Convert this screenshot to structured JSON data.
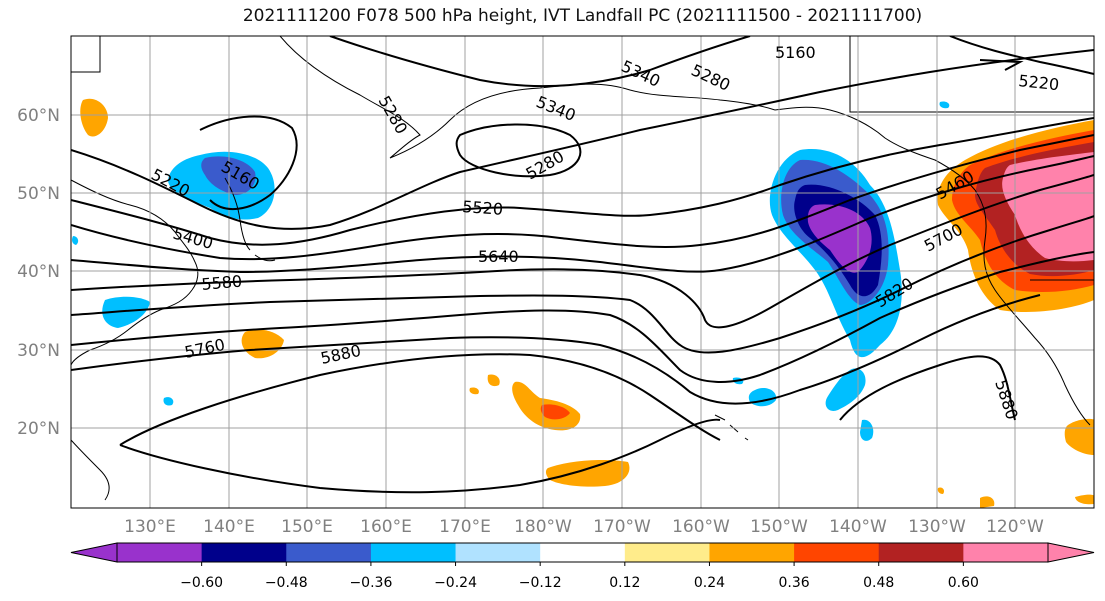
{
  "title": "2021111200 F078 500 hPa height, IVT Landfall PC (2021111500 - 2021111700)",
  "map": {
    "lat_ticks": [
      "20°N",
      "30°N",
      "40°N",
      "50°N",
      "60°N"
    ],
    "lon_ticks": [
      "130°E",
      "140°E",
      "150°E",
      "160°E",
      "170°E",
      "180°W",
      "170°W",
      "160°W",
      "150°W",
      "140°W",
      "130°W",
      "120°W"
    ],
    "tick_color": "#808080",
    "contour_color": "#000000"
  },
  "contours": {
    "labels": [
      {
        "id": "c5160",
        "text": "5160"
      },
      {
        "id": "c5220a",
        "text": "5220"
      },
      {
        "id": "c5220b",
        "text": "5220"
      },
      {
        "id": "c5280a",
        "text": "5280"
      },
      {
        "id": "c5280b",
        "text": "5280"
      },
      {
        "id": "c5280c",
        "text": "5280"
      },
      {
        "id": "c5340a",
        "text": "5340"
      },
      {
        "id": "c5340b",
        "text": "5340"
      },
      {
        "id": "c5160b",
        "text": "5160"
      },
      {
        "id": "c5400",
        "text": "5400"
      },
      {
        "id": "c5520",
        "text": "5520"
      },
      {
        "id": "c5580",
        "text": "5580"
      },
      {
        "id": "c5640",
        "text": "5640"
      },
      {
        "id": "c5700",
        "text": "5700"
      },
      {
        "id": "c5760",
        "text": "5760"
      },
      {
        "id": "c5820",
        "text": "5820"
      },
      {
        "id": "c5880a",
        "text": "5880"
      },
      {
        "id": "c5880b",
        "text": "5880"
      },
      {
        "id": "c5460",
        "text": "5460"
      }
    ]
  },
  "colorbar": {
    "colors": [
      "#9932CC",
      "#00008B",
      "#3A5BCC",
      "#00BFFF",
      "#B0E2FF",
      "#FFFFFF",
      "#FFEC8B",
      "#FFA500",
      "#FF4500",
      "#B22222",
      "#FF82AB"
    ],
    "tick_labels": [
      "−0.60",
      "−0.48",
      "−0.36",
      "−0.24",
      "−0.12",
      "0.12",
      "0.24",
      "0.36",
      "0.48",
      "0.60"
    ]
  }
}
